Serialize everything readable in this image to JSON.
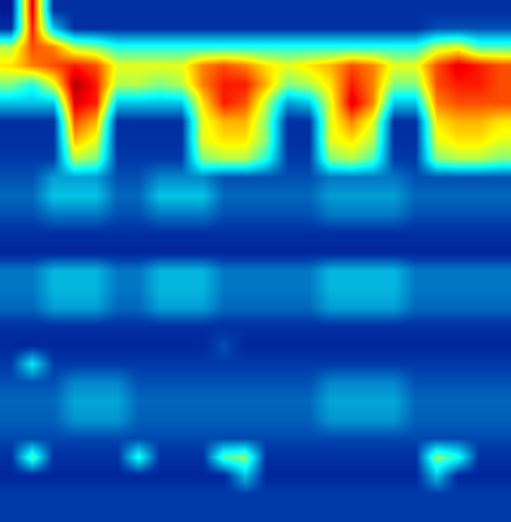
{
  "chart_data": {
    "type": "heatmap",
    "color": "Jet",
    "tick_labels": false,
    "zlim": [
      0,
      1
    ],
    "cells": [
      [
        0.05,
        0.9,
        0.1,
        0.1,
        0.1,
        0.1,
        0.1,
        0.1,
        0.1,
        0.1,
        0.1,
        0.1,
        0.1,
        0.1,
        0.1,
        0.1,
        0.1,
        0.1,
        0.1,
        0.1,
        0.1,
        0.1,
        0.1,
        0.1
      ],
      [
        0.1,
        0.85,
        0.3,
        0.1,
        0.1,
        0.1,
        0.1,
        0.1,
        0.1,
        0.1,
        0.1,
        0.1,
        0.1,
        0.1,
        0.1,
        0.1,
        0.1,
        0.1,
        0.1,
        0.1,
        0.15,
        0.15,
        0.15,
        0.15
      ],
      [
        0.55,
        0.8,
        0.75,
        0.55,
        0.5,
        0.4,
        0.4,
        0.4,
        0.4,
        0.4,
        0.4,
        0.4,
        0.4,
        0.4,
        0.4,
        0.4,
        0.4,
        0.4,
        0.4,
        0.4,
        0.55,
        0.6,
        0.45,
        0.45
      ],
      [
        0.65,
        0.75,
        0.8,
        0.85,
        0.8,
        0.6,
        0.6,
        0.6,
        0.6,
        0.75,
        0.8,
        0.75,
        0.65,
        0.6,
        0.65,
        0.7,
        0.8,
        0.75,
        0.6,
        0.6,
        0.8,
        0.9,
        0.85,
        0.8
      ],
      [
        0.5,
        0.4,
        0.6,
        0.95,
        0.85,
        0.55,
        0.55,
        0.5,
        0.55,
        0.75,
        0.85,
        0.85,
        0.7,
        0.5,
        0.55,
        0.65,
        0.85,
        0.75,
        0.5,
        0.5,
        0.8,
        0.85,
        0.85,
        0.8
      ],
      [
        0.3,
        0.3,
        0.3,
        0.9,
        0.85,
        0.3,
        0.3,
        0.3,
        0.3,
        0.65,
        0.85,
        0.8,
        0.55,
        0.25,
        0.3,
        0.6,
        0.9,
        0.75,
        0.3,
        0.3,
        0.75,
        0.8,
        0.8,
        0.8
      ],
      [
        0.1,
        0.1,
        0.1,
        0.8,
        0.7,
        0.1,
        0.1,
        0.1,
        0.1,
        0.6,
        0.7,
        0.7,
        0.5,
        0.1,
        0.1,
        0.6,
        0.75,
        0.6,
        0.1,
        0.1,
        0.65,
        0.7,
        0.7,
        0.65
      ],
      [
        0.1,
        0.1,
        0.1,
        0.7,
        0.6,
        0.1,
        0.1,
        0.1,
        0.1,
        0.6,
        0.65,
        0.65,
        0.5,
        0.1,
        0.1,
        0.6,
        0.65,
        0.55,
        0.1,
        0.1,
        0.6,
        0.65,
        0.65,
        0.6
      ],
      [
        0.12,
        0.12,
        0.12,
        0.55,
        0.5,
        0.12,
        0.12,
        0.12,
        0.12,
        0.5,
        0.55,
        0.55,
        0.4,
        0.12,
        0.12,
        0.5,
        0.55,
        0.45,
        0.12,
        0.12,
        0.5,
        0.55,
        0.55,
        0.5
      ],
      [
        0.15,
        0.15,
        0.25,
        0.25,
        0.25,
        0.15,
        0.15,
        0.22,
        0.22,
        0.22,
        0.15,
        0.15,
        0.15,
        0.15,
        0.15,
        0.2,
        0.2,
        0.2,
        0.2,
        0.15,
        0.15,
        0.15,
        0.15,
        0.15
      ],
      [
        0.18,
        0.18,
        0.3,
        0.3,
        0.3,
        0.18,
        0.18,
        0.3,
        0.3,
        0.3,
        0.18,
        0.18,
        0.18,
        0.18,
        0.18,
        0.25,
        0.25,
        0.25,
        0.25,
        0.18,
        0.18,
        0.18,
        0.18,
        0.18
      ],
      [
        0.15,
        0.15,
        0.2,
        0.2,
        0.2,
        0.15,
        0.15,
        0.2,
        0.2,
        0.2,
        0.15,
        0.15,
        0.15,
        0.15,
        0.15,
        0.2,
        0.2,
        0.2,
        0.2,
        0.15,
        0.15,
        0.15,
        0.15,
        0.15
      ],
      [
        0.1,
        0.1,
        0.1,
        0.1,
        0.1,
        0.1,
        0.1,
        0.1,
        0.1,
        0.1,
        0.1,
        0.1,
        0.1,
        0.1,
        0.1,
        0.1,
        0.1,
        0.1,
        0.1,
        0.1,
        0.1,
        0.1,
        0.1,
        0.1
      ],
      [
        0.08,
        0.08,
        0.08,
        0.08,
        0.08,
        0.08,
        0.08,
        0.08,
        0.08,
        0.08,
        0.08,
        0.08,
        0.08,
        0.08,
        0.08,
        0.08,
        0.08,
        0.08,
        0.08,
        0.08,
        0.08,
        0.08,
        0.08,
        0.08
      ],
      [
        0.2,
        0.2,
        0.28,
        0.28,
        0.28,
        0.2,
        0.2,
        0.28,
        0.28,
        0.28,
        0.2,
        0.2,
        0.2,
        0.2,
        0.2,
        0.28,
        0.28,
        0.28,
        0.28,
        0.2,
        0.2,
        0.2,
        0.2,
        0.2
      ],
      [
        0.2,
        0.2,
        0.28,
        0.28,
        0.28,
        0.2,
        0.2,
        0.28,
        0.28,
        0.28,
        0.2,
        0.2,
        0.2,
        0.2,
        0.2,
        0.28,
        0.28,
        0.28,
        0.28,
        0.2,
        0.2,
        0.2,
        0.2,
        0.2
      ],
      [
        0.18,
        0.18,
        0.25,
        0.25,
        0.25,
        0.18,
        0.18,
        0.25,
        0.25,
        0.25,
        0.18,
        0.18,
        0.18,
        0.18,
        0.18,
        0.25,
        0.25,
        0.25,
        0.25,
        0.18,
        0.18,
        0.18,
        0.18,
        0.18
      ],
      [
        0.1,
        0.1,
        0.1,
        0.1,
        0.1,
        0.1,
        0.1,
        0.1,
        0.1,
        0.1,
        0.1,
        0.1,
        0.1,
        0.1,
        0.1,
        0.1,
        0.1,
        0.1,
        0.1,
        0.1,
        0.1,
        0.1,
        0.1,
        0.1
      ],
      [
        0.08,
        0.08,
        0.08,
        0.08,
        0.08,
        0.08,
        0.08,
        0.08,
        0.08,
        0.08,
        0.15,
        0.08,
        0.08,
        0.08,
        0.08,
        0.08,
        0.08,
        0.08,
        0.08,
        0.08,
        0.08,
        0.08,
        0.08,
        0.08
      ],
      [
        0.12,
        0.35,
        0.12,
        0.12,
        0.12,
        0.12,
        0.12,
        0.12,
        0.12,
        0.12,
        0.12,
        0.12,
        0.12,
        0.12,
        0.12,
        0.12,
        0.12,
        0.12,
        0.12,
        0.12,
        0.12,
        0.12,
        0.12,
        0.12
      ],
      [
        0.15,
        0.15,
        0.15,
        0.22,
        0.22,
        0.22,
        0.15,
        0.15,
        0.15,
        0.15,
        0.15,
        0.15,
        0.15,
        0.15,
        0.15,
        0.22,
        0.22,
        0.22,
        0.22,
        0.15,
        0.15,
        0.15,
        0.15,
        0.15
      ],
      [
        0.18,
        0.18,
        0.18,
        0.26,
        0.26,
        0.26,
        0.18,
        0.18,
        0.18,
        0.18,
        0.18,
        0.18,
        0.18,
        0.18,
        0.18,
        0.26,
        0.26,
        0.26,
        0.26,
        0.18,
        0.18,
        0.18,
        0.18,
        0.18
      ],
      [
        0.17,
        0.17,
        0.17,
        0.24,
        0.24,
        0.24,
        0.17,
        0.17,
        0.17,
        0.17,
        0.17,
        0.17,
        0.17,
        0.17,
        0.17,
        0.24,
        0.24,
        0.24,
        0.24,
        0.17,
        0.17,
        0.17,
        0.17,
        0.17
      ],
      [
        0.14,
        0.14,
        0.14,
        0.14,
        0.14,
        0.14,
        0.14,
        0.14,
        0.14,
        0.14,
        0.14,
        0.14,
        0.14,
        0.14,
        0.14,
        0.14,
        0.14,
        0.14,
        0.14,
        0.14,
        0.14,
        0.14,
        0.14,
        0.14
      ],
      [
        0.1,
        0.45,
        0.1,
        0.1,
        0.1,
        0.1,
        0.4,
        0.1,
        0.1,
        0.1,
        0.45,
        0.5,
        0.1,
        0.1,
        0.1,
        0.1,
        0.1,
        0.1,
        0.1,
        0.1,
        0.5,
        0.4,
        0.1,
        0.1
      ],
      [
        0.08,
        0.08,
        0.08,
        0.08,
        0.08,
        0.08,
        0.08,
        0.08,
        0.08,
        0.08,
        0.08,
        0.3,
        0.08,
        0.08,
        0.08,
        0.08,
        0.08,
        0.08,
        0.08,
        0.08,
        0.3,
        0.08,
        0.08,
        0.08
      ],
      [
        0.12,
        0.12,
        0.12,
        0.12,
        0.12,
        0.12,
        0.12,
        0.12,
        0.12,
        0.12,
        0.12,
        0.12,
        0.12,
        0.12,
        0.12,
        0.12,
        0.12,
        0.12,
        0.12,
        0.12,
        0.12,
        0.12,
        0.12,
        0.12
      ],
      [
        0.12,
        0.12,
        0.12,
        0.12,
        0.12,
        0.12,
        0.12,
        0.12,
        0.12,
        0.12,
        0.12,
        0.12,
        0.12,
        0.12,
        0.12,
        0.12,
        0.12,
        0.12,
        0.12,
        0.12,
        0.12,
        0.12,
        0.12,
        0.12
      ]
    ]
  }
}
